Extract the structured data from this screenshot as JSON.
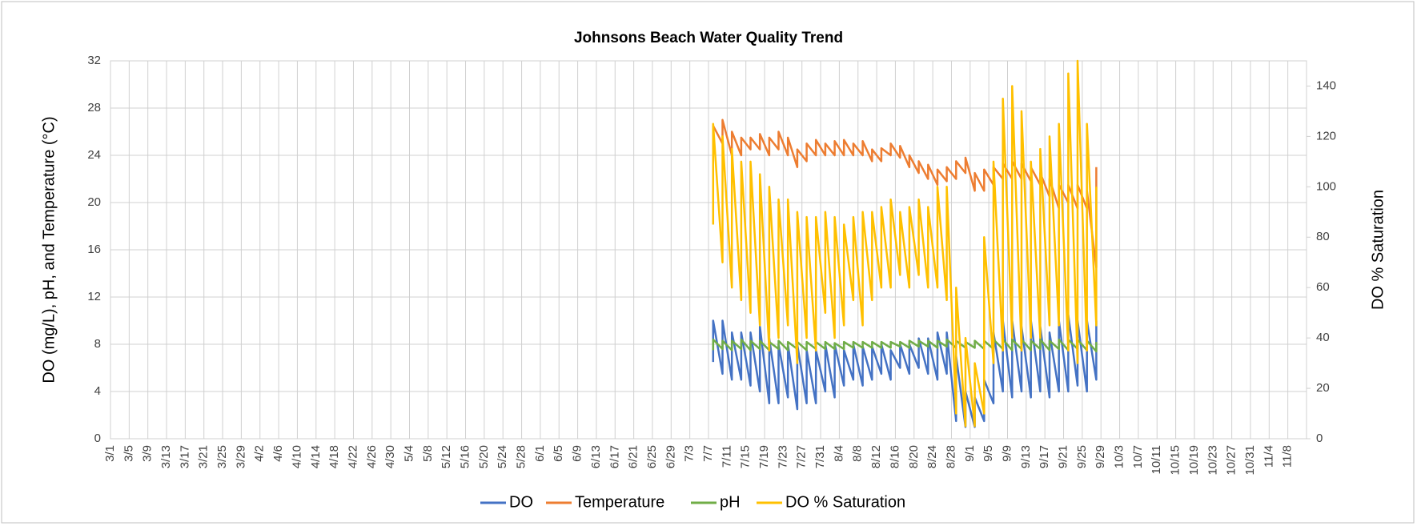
{
  "chart_data": {
    "type": "line",
    "title": "Johnsons Beach Water Quality Trend",
    "y_label": "DO (mg/L), pH, and Temperature (°C)",
    "y2_label": "DO % Saturation",
    "xlim": [
      "3/1",
      "11/12"
    ],
    "xticks": [
      "3/1",
      "3/5",
      "3/9",
      "3/13",
      "3/17",
      "3/21",
      "3/25",
      "3/29",
      "4/2",
      "4/6",
      "4/10",
      "4/14",
      "4/18",
      "4/22",
      "4/26",
      "4/30",
      "5/4",
      "5/8",
      "5/12",
      "5/16",
      "5/20",
      "5/24",
      "5/28",
      "6/1",
      "6/5",
      "6/9",
      "6/13",
      "6/17",
      "6/21",
      "6/25",
      "6/29",
      "7/3",
      "7/7",
      "7/11",
      "7/15",
      "7/19",
      "7/23",
      "7/27",
      "7/31",
      "8/4",
      "8/8",
      "8/12",
      "8/16",
      "8/20",
      "8/24",
      "8/28",
      "9/1",
      "9/5",
      "9/9",
      "9/13",
      "9/17",
      "9/21",
      "9/25",
      "9/29",
      "10/3",
      "10/7",
      "10/11",
      "10/15",
      "10/19",
      "10/23",
      "10/27",
      "10/31",
      "11/4",
      "11/8"
    ],
    "ylim": [
      0,
      32
    ],
    "yticks": [
      0,
      4,
      8,
      12,
      16,
      20,
      24,
      28,
      32
    ],
    "y2lim": [
      0,
      150
    ],
    "y2ticks": [
      0,
      20,
      40,
      60,
      80,
      100,
      120,
      140
    ],
    "grid": true,
    "legend": "bottom",
    "x": [
      "7/8",
      "7/8",
      "7/10",
      "7/10",
      "7/12",
      "7/12",
      "7/14",
      "7/14",
      "7/16",
      "7/16",
      "7/18",
      "7/18",
      "7/20",
      "7/20",
      "7/22",
      "7/22",
      "7/24",
      "7/24",
      "7/26",
      "7/26",
      "7/28",
      "7/28",
      "7/30",
      "7/30",
      "8/1",
      "8/1",
      "8/3",
      "8/3",
      "8/5",
      "8/5",
      "8/7",
      "8/7",
      "8/9",
      "8/9",
      "8/11",
      "8/11",
      "8/13",
      "8/13",
      "8/15",
      "8/15",
      "8/17",
      "8/17",
      "8/19",
      "8/19",
      "8/21",
      "8/21",
      "8/23",
      "8/23",
      "8/25",
      "8/25",
      "8/27",
      "8/27",
      "8/29",
      "8/29",
      "8/31",
      "8/31",
      "9/2",
      "9/2",
      "9/4",
      "9/4",
      "9/6",
      "9/6",
      "9/8",
      "9/8",
      "9/10",
      "9/10",
      "9/12",
      "9/12",
      "9/14",
      "9/14",
      "9/16",
      "9/16",
      "9/18",
      "9/18",
      "9/20",
      "9/20",
      "9/22",
      "9/22",
      "9/24",
      "9/24",
      "9/26",
      "9/26",
      "9/28",
      "9/28"
    ],
    "series": [
      {
        "name": "DO",
        "color": "#4472c4",
        "values": [
          6.5,
          10,
          5.5,
          10,
          5,
          9,
          5,
          9,
          4.5,
          9,
          4,
          9.5,
          3,
          8.5,
          3,
          8,
          3.5,
          8,
          2.5,
          8,
          3,
          7.5,
          3,
          7.5,
          4,
          8,
          3.5,
          8,
          4.5,
          7.5,
          5,
          8,
          4.5,
          7.8,
          5,
          7.8,
          5.5,
          8,
          5,
          7.5,
          6,
          8,
          5.5,
          8,
          6,
          8.5,
          5.5,
          8.5,
          5,
          9,
          5.5,
          9,
          1.5,
          7,
          1,
          4,
          1,
          3.5,
          1.5,
          5,
          3,
          9,
          4,
          10,
          3.5,
          10,
          4,
          9.5,
          3.5,
          10,
          4,
          9.5,
          3.5,
          9,
          4,
          10,
          4,
          10.5,
          4.5,
          10,
          4,
          10,
          5,
          10
        ]
      },
      {
        "name": "Temperature",
        "color": "#ed7d31",
        "values": [
          24.5,
          26.5,
          25,
          27,
          24,
          26,
          24,
          25.5,
          24.5,
          25.5,
          24.5,
          25.8,
          24,
          25.5,
          24.5,
          26,
          24,
          25.5,
          23,
          24.5,
          23.5,
          25,
          24,
          25.3,
          24,
          25,
          24,
          25.2,
          24,
          25.3,
          24,
          25,
          24,
          25.2,
          23.5,
          24.5,
          23.5,
          24.6,
          24,
          25,
          23.8,
          24.8,
          23,
          24,
          22.5,
          23.5,
          22,
          23.2,
          21.5,
          22.8,
          21.8,
          23,
          22,
          23.5,
          22.5,
          23.8,
          21,
          22.5,
          21,
          22.8,
          21.5,
          23,
          22,
          23.3,
          22,
          23.5,
          22,
          23.3,
          21.8,
          23,
          21.5,
          22.5,
          20.5,
          22,
          19.5,
          21.5,
          20,
          21.5,
          19.5,
          21.5,
          19.5,
          21,
          14.5,
          23
        ]
      },
      {
        "name": "pH",
        "color": "#70ad47",
        "values": [
          7.5,
          8.4,
          7.6,
          8.3,
          7.5,
          8.3,
          7.6,
          8.4,
          7.5,
          8.3,
          7.6,
          8.3,
          7.5,
          8.2,
          7.6,
          8.3,
          7.5,
          8.2,
          7.6,
          8.2,
          7.5,
          8.2,
          7.6,
          8.2,
          7.6,
          8.2,
          7.6,
          8.1,
          7.6,
          8.2,
          7.7,
          8.2,
          7.7,
          8.2,
          7.7,
          8.2,
          7.7,
          8.2,
          7.7,
          8.2,
          7.8,
          8.2,
          7.7,
          8.3,
          7.8,
          8.3,
          7.8,
          8.3,
          7.7,
          8.3,
          7.8,
          8.4,
          7.7,
          8.3,
          7.7,
          8.2,
          7.7,
          8.3,
          7.6,
          8.3,
          7.6,
          8.4,
          7.6,
          8.4,
          7.5,
          8.4,
          7.6,
          8.4,
          7.5,
          8.3,
          7.6,
          8.4,
          7.5,
          8.3,
          7.6,
          8.4,
          7.5,
          8.4,
          7.6,
          8.4,
          7.5,
          8.3,
          7.4,
          8.2
        ]
      },
      {
        "name": "DO % Saturation",
        "color": "#ffc000",
        "axis": "y2",
        "values": [
          85,
          125,
          70,
          120,
          60,
          115,
          55,
          110,
          50,
          110,
          45,
          105,
          35,
          100,
          40,
          95,
          45,
          95,
          30,
          90,
          40,
          88,
          35,
          88,
          50,
          90,
          40,
          88,
          45,
          85,
          55,
          88,
          45,
          90,
          55,
          90,
          60,
          92,
          60,
          95,
          65,
          90,
          60,
          92,
          65,
          95,
          60,
          92,
          60,
          100,
          55,
          100,
          10,
          60,
          5,
          40,
          5,
          30,
          10,
          80,
          30,
          110,
          35,
          135,
          40,
          140,
          35,
          130,
          40,
          110,
          40,
          115,
          45,
          120,
          45,
          125,
          35,
          145,
          30,
          150,
          35,
          125,
          45,
          100
        ]
      }
    ]
  }
}
